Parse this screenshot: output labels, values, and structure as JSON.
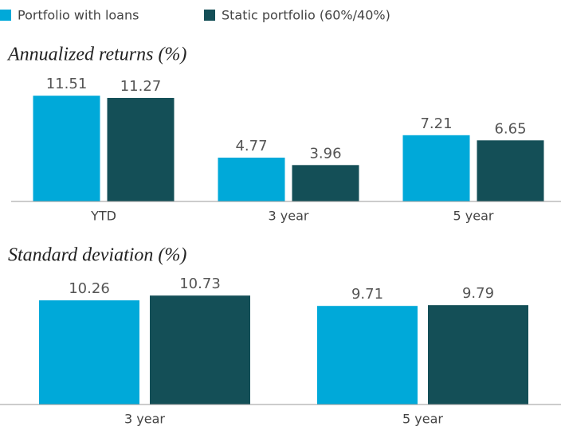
{
  "chart_data": [
    {
      "type": "bar",
      "title": "Annualized returns (%)",
      "categories": [
        "YTD",
        "3 year",
        "5 year"
      ],
      "series": [
        {
          "name": "Portfolio with loans",
          "color": "#00a9d9",
          "values": [
            11.51,
            4.77,
            7.21
          ]
        },
        {
          "name": "Static portfolio (60%/40%)",
          "color": "#144f57",
          "values": [
            11.27,
            3.96,
            6.65
          ]
        }
      ],
      "ylim": [
        0,
        13
      ]
    },
    {
      "type": "bar",
      "title": "Standard deviation (%)",
      "categories": [
        "3 year",
        "5 year"
      ],
      "series": [
        {
          "color": "#00a9d9",
          "values": [
            10.26,
            9.71
          ]
        },
        {
          "color": "#144f57",
          "values": [
            10.73,
            9.79
          ]
        }
      ],
      "ylim": [
        0,
        12
      ]
    }
  ]
}
